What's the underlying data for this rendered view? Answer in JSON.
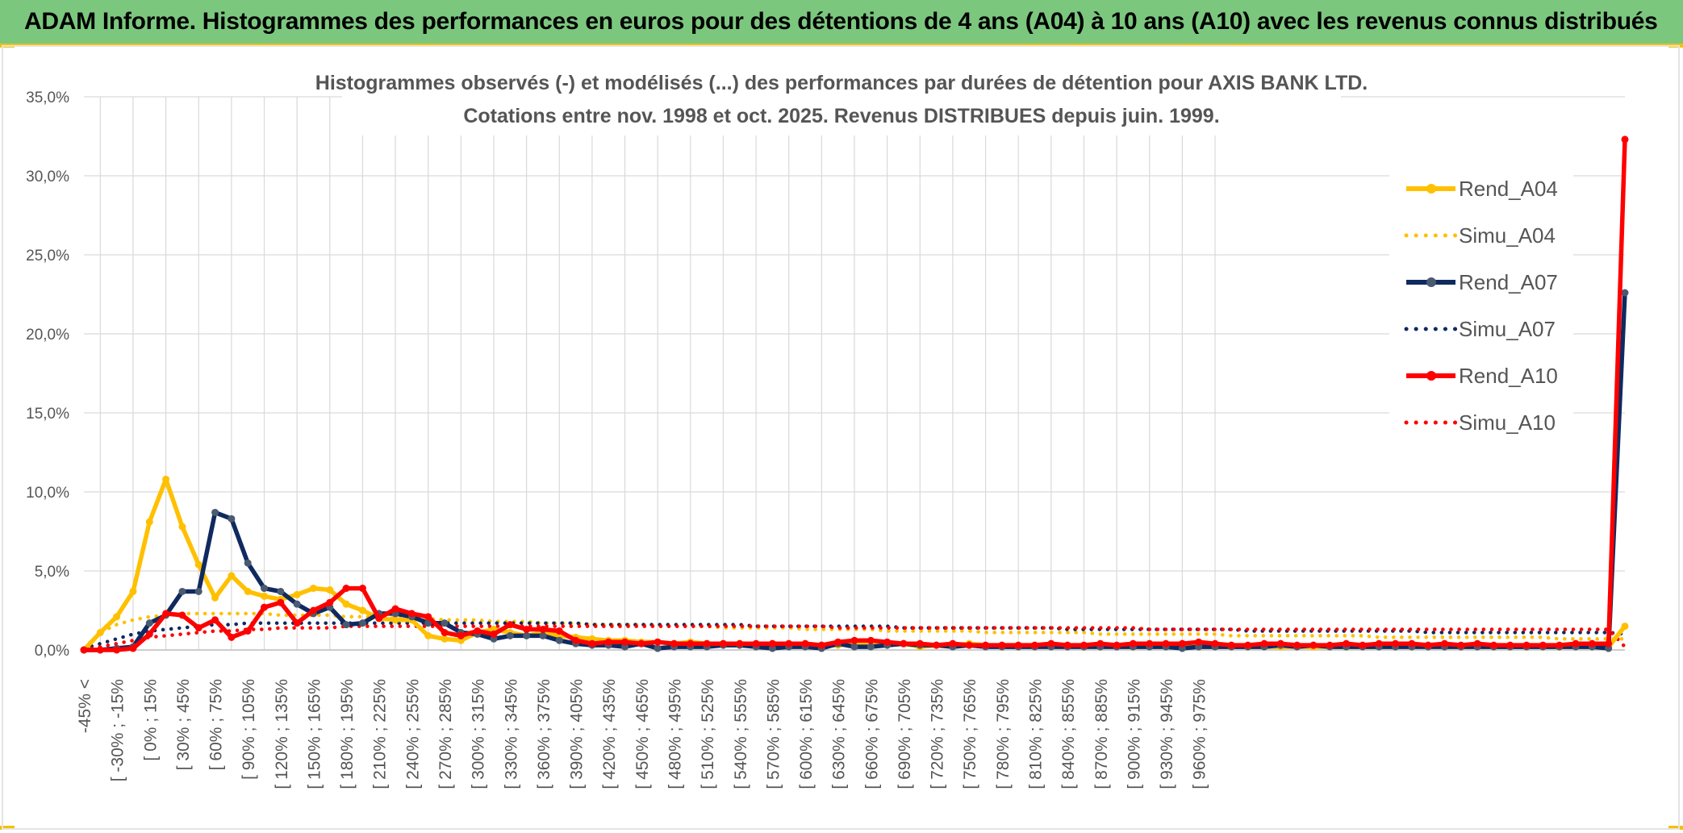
{
  "header": {
    "title": "ADAM Informe. Histogrammes des performances en euros pour des détentions de 4 ans (A04) à 10 ans (A10) avec les revenus connus distribués"
  },
  "colors": {
    "banner": "#7bc77e",
    "accent": "#f2c200",
    "A04": "#ffc000",
    "A07": "#0f2a5f",
    "A10": "#ff0000",
    "marker07": "#4a5a72"
  },
  "chart_data": {
    "type": "line",
    "title": "Histogrammes observés (-) et modélisés (...) des performances par durées de détention pour AXIS BANK LTD.",
    "subtitle": "Cotations entre nov. 1998 et oct. 2025. Revenus DISTRIBUES depuis juin. 1999.",
    "xlabel": "",
    "ylabel": "",
    "ylim": [
      0,
      0.35
    ],
    "yticks": [
      "0,0%",
      "5,0%",
      "10,0%",
      "15,0%",
      "20,0%",
      "25,0%",
      "30,0%",
      "35,0%"
    ],
    "grid": true,
    "legend_position": "right",
    "x_tick_labels": [
      "-45% <",
      "[ -30% ; -15%",
      "[ 0% ; 15%",
      "[ 30% ; 45%",
      "[ 60% ; 75%",
      "[ 90% ; 105%",
      "[ 120% ; 135%",
      "[ 150% ; 165%",
      "[ 180% ; 195%",
      "[ 210% ; 225%",
      "[ 240% ; 255%",
      "[ 270% ; 285%",
      "[ 300% ; 315%",
      "[ 330% ; 345%",
      "[ 360% ; 375%",
      "[ 390% ; 405%",
      "[ 420% ; 435%",
      "[ 450% ; 465%",
      "[ 480% ; 495%",
      "[ 510% ; 525%",
      "[ 540% ; 555%",
      "[ 570% ; 585%",
      "[ 600% ; 615%",
      "[ 630% ; 645%",
      "[ 660% ; 675%",
      "[ 690% ; 705%",
      "[ 720% ; 735%",
      "[ 750% ; 765%",
      "[ 780% ; 795%",
      "[ 810% ; 825%",
      "[ 840% ; 855%",
      "[ 870% ; 885%",
      "[ 900% ; 915%",
      "[ 930% ; 945%",
      "[ 960% ; 975%"
    ],
    "series": [
      {
        "name": "Rend_A04",
        "style": "solid",
        "color": "#ffc000",
        "values": [
          0.0,
          0.011,
          0.021,
          0.037,
          0.081,
          0.108,
          0.078,
          0.054,
          0.033,
          0.047,
          0.037,
          0.034,
          0.032,
          0.035,
          0.039,
          0.038,
          0.029,
          0.025,
          0.02,
          0.019,
          0.019,
          0.009,
          0.007,
          0.006,
          0.011,
          0.013,
          0.011,
          0.009,
          0.011,
          0.009,
          0.008,
          0.007,
          0.006,
          0.006,
          0.005,
          0.005,
          0.004,
          0.005,
          0.004,
          0.004,
          0.004,
          0.003,
          0.004,
          0.003,
          0.004,
          0.003,
          0.003,
          0.004,
          0.003,
          0.003,
          0.004,
          0.002,
          0.003,
          0.003,
          0.004,
          0.003,
          0.002,
          0.002,
          0.003,
          0.002,
          0.003,
          0.002,
          0.003,
          0.002,
          0.002,
          0.002,
          0.002,
          0.003,
          0.002,
          0.002,
          0.002,
          0.002,
          0.002,
          0.002,
          0.002,
          0.002,
          0.002,
          0.002,
          0.002,
          0.002,
          0.002,
          0.002,
          0.003,
          0.002,
          0.002,
          0.002,
          0.002,
          0.002,
          0.002,
          0.002,
          0.002,
          0.002,
          0.002,
          0.002,
          0.015
        ]
      },
      {
        "name": "Simu_A04",
        "style": "dotted",
        "color": "#ffc000",
        "values": [
          0.001,
          0.011,
          0.016,
          0.019,
          0.021,
          0.022,
          0.023,
          0.023,
          0.023,
          0.023,
          0.023,
          0.023,
          0.022,
          0.022,
          0.022,
          0.022,
          0.021,
          0.021,
          0.021,
          0.02,
          0.02,
          0.02,
          0.019,
          0.019,
          0.019,
          0.018,
          0.018,
          0.018,
          0.017,
          0.017,
          0.017,
          0.016,
          0.016,
          0.016,
          0.016,
          0.015,
          0.015,
          0.015,
          0.015,
          0.014,
          0.014,
          0.014,
          0.014,
          0.014,
          0.013,
          0.013,
          0.013,
          0.013,
          0.013,
          0.012,
          0.012,
          0.012,
          0.012,
          0.012,
          0.012,
          0.011,
          0.011,
          0.011,
          0.011,
          0.011,
          0.011,
          0.011,
          0.01,
          0.01,
          0.01,
          0.01,
          0.01,
          0.01,
          0.01,
          0.01,
          0.009,
          0.009,
          0.009,
          0.009,
          0.009,
          0.009,
          0.009,
          0.009,
          0.009,
          0.008,
          0.008,
          0.008,
          0.008,
          0.008,
          0.008,
          0.008,
          0.008,
          0.008,
          0.008,
          0.008,
          0.007,
          0.007,
          0.007,
          0.007,
          0.007
        ]
      },
      {
        "name": "Rend_A07",
        "style": "solid",
        "color": "#0f2a5f",
        "values": [
          0.0,
          0.0,
          0.001,
          0.002,
          0.017,
          0.022,
          0.037,
          0.037,
          0.087,
          0.083,
          0.055,
          0.039,
          0.037,
          0.029,
          0.023,
          0.027,
          0.016,
          0.017,
          0.023,
          0.023,
          0.021,
          0.017,
          0.017,
          0.011,
          0.01,
          0.007,
          0.009,
          0.009,
          0.009,
          0.006,
          0.004,
          0.003,
          0.003,
          0.002,
          0.004,
          0.001,
          0.002,
          0.002,
          0.002,
          0.003,
          0.003,
          0.002,
          0.001,
          0.002,
          0.002,
          0.001,
          0.004,
          0.002,
          0.002,
          0.003,
          0.004,
          0.003,
          0.003,
          0.002,
          0.003,
          0.002,
          0.002,
          0.002,
          0.002,
          0.002,
          0.002,
          0.002,
          0.002,
          0.002,
          0.002,
          0.002,
          0.002,
          0.001,
          0.002,
          0.002,
          0.002,
          0.002,
          0.002,
          0.003,
          0.002,
          0.003,
          0.002,
          0.002,
          0.002,
          0.002,
          0.002,
          0.002,
          0.002,
          0.002,
          0.002,
          0.002,
          0.002,
          0.002,
          0.002,
          0.002,
          0.002,
          0.002,
          0.002,
          0.001,
          0.226
        ]
      },
      {
        "name": "Simu_A07",
        "style": "dotted",
        "color": "#0f2a5f",
        "values": [
          0.001,
          0.004,
          0.007,
          0.01,
          0.012,
          0.013,
          0.014,
          0.015,
          0.016,
          0.016,
          0.017,
          0.017,
          0.017,
          0.017,
          0.017,
          0.017,
          0.017,
          0.017,
          0.017,
          0.017,
          0.017,
          0.017,
          0.017,
          0.017,
          0.017,
          0.017,
          0.017,
          0.017,
          0.017,
          0.017,
          0.017,
          0.016,
          0.016,
          0.016,
          0.016,
          0.016,
          0.016,
          0.016,
          0.016,
          0.016,
          0.016,
          0.015,
          0.015,
          0.015,
          0.015,
          0.015,
          0.015,
          0.015,
          0.015,
          0.015,
          0.014,
          0.014,
          0.014,
          0.014,
          0.014,
          0.014,
          0.014,
          0.014,
          0.014,
          0.014,
          0.013,
          0.013,
          0.013,
          0.013,
          0.013,
          0.013,
          0.013,
          0.013,
          0.013,
          0.013,
          0.013,
          0.012,
          0.012,
          0.012,
          0.012,
          0.012,
          0.012,
          0.012,
          0.012,
          0.012,
          0.012,
          0.012,
          0.011,
          0.011,
          0.011,
          0.011,
          0.011,
          0.011,
          0.011,
          0.011,
          0.011,
          0.011,
          0.011,
          0.011,
          0.01
        ]
      },
      {
        "name": "Rend_A10",
        "style": "solid",
        "color": "#ff0000",
        "values": [
          0.0,
          0.0,
          0.0,
          0.001,
          0.01,
          0.023,
          0.022,
          0.014,
          0.019,
          0.008,
          0.012,
          0.027,
          0.03,
          0.017,
          0.025,
          0.03,
          0.039,
          0.039,
          0.02,
          0.026,
          0.023,
          0.021,
          0.011,
          0.009,
          0.012,
          0.01,
          0.016,
          0.013,
          0.013,
          0.012,
          0.006,
          0.004,
          0.005,
          0.005,
          0.004,
          0.005,
          0.004,
          0.004,
          0.004,
          0.004,
          0.004,
          0.004,
          0.004,
          0.004,
          0.004,
          0.003,
          0.005,
          0.006,
          0.006,
          0.005,
          0.004,
          0.004,
          0.003,
          0.004,
          0.003,
          0.003,
          0.003,
          0.003,
          0.003,
          0.004,
          0.003,
          0.003,
          0.004,
          0.003,
          0.004,
          0.004,
          0.004,
          0.004,
          0.005,
          0.004,
          0.003,
          0.003,
          0.004,
          0.004,
          0.003,
          0.003,
          0.003,
          0.004,
          0.003,
          0.004,
          0.004,
          0.004,
          0.003,
          0.004,
          0.003,
          0.004,
          0.003,
          0.003,
          0.003,
          0.003,
          0.003,
          0.004,
          0.004,
          0.004,
          0.323
        ]
      },
      {
        "name": "Simu_A10",
        "style": "dotted",
        "color": "#ff0000",
        "values": [
          0.0,
          0.002,
          0.004,
          0.006,
          0.008,
          0.009,
          0.01,
          0.011,
          0.012,
          0.012,
          0.013,
          0.013,
          0.014,
          0.014,
          0.014,
          0.014,
          0.015,
          0.015,
          0.015,
          0.015,
          0.015,
          0.015,
          0.015,
          0.015,
          0.015,
          0.015,
          0.015,
          0.015,
          0.015,
          0.015,
          0.015,
          0.015,
          0.015,
          0.015,
          0.015,
          0.015,
          0.015,
          0.015,
          0.015,
          0.015,
          0.015,
          0.015,
          0.015,
          0.015,
          0.015,
          0.015,
          0.014,
          0.014,
          0.014,
          0.014,
          0.014,
          0.014,
          0.014,
          0.014,
          0.014,
          0.014,
          0.014,
          0.014,
          0.014,
          0.014,
          0.014,
          0.014,
          0.014,
          0.014,
          0.014,
          0.013,
          0.013,
          0.013,
          0.013,
          0.013,
          0.013,
          0.013,
          0.013,
          0.013,
          0.013,
          0.013,
          0.013,
          0.013,
          0.013,
          0.013,
          0.013,
          0.013,
          0.013,
          0.013,
          0.013,
          0.013,
          0.013,
          0.013,
          0.013,
          0.013,
          0.013,
          0.013,
          0.013,
          0.013,
          0.002
        ]
      }
    ]
  }
}
